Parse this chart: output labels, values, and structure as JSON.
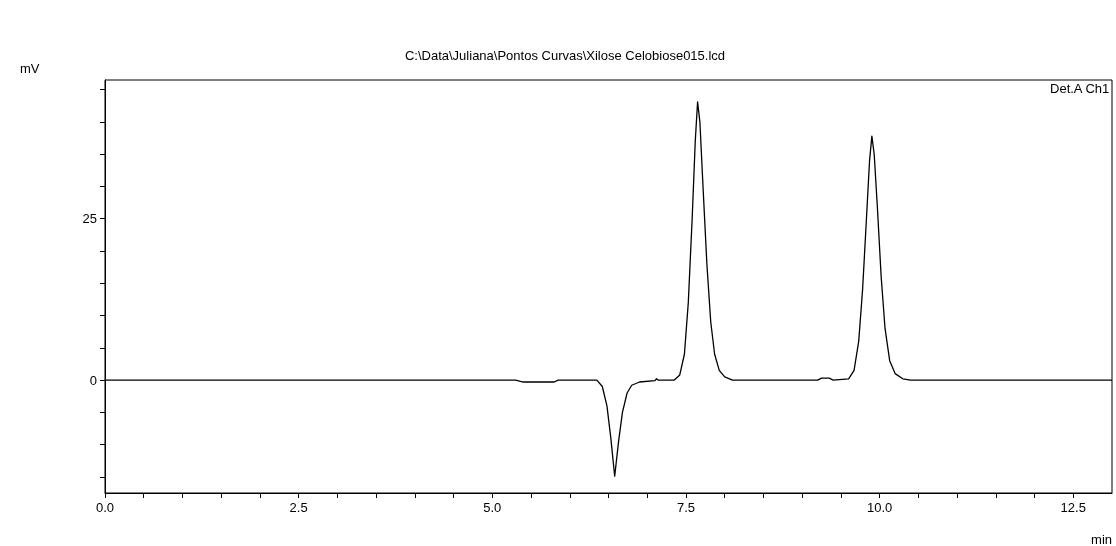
{
  "chart_data": {
    "type": "line",
    "title": "C:\\Data\\Juliana\\Pontos Curvas\\Xilose Celobiose015.lcd",
    "xlabel": "min",
    "ylabel": "mV",
    "annotations": [
      "Det.A Ch1"
    ],
    "grid": false,
    "marker": "none",
    "line_style": "solid",
    "xlim": [
      0,
      13
    ],
    "ylim": [
      -17.5,
      46.5
    ],
    "xticks": [
      {
        "value": 0,
        "label": "0.0"
      },
      {
        "value": 0.5,
        "label": null
      },
      {
        "value": 1,
        "label": null
      },
      {
        "value": 1.5,
        "label": null
      },
      {
        "value": 2,
        "label": null
      },
      {
        "value": 2.5,
        "label": "2.5"
      },
      {
        "value": 3,
        "label": null
      },
      {
        "value": 3.5,
        "label": null
      },
      {
        "value": 4,
        "label": null
      },
      {
        "value": 4.5,
        "label": null
      },
      {
        "value": 5,
        "label": "5.0"
      },
      {
        "value": 5.5,
        "label": null
      },
      {
        "value": 6,
        "label": null
      },
      {
        "value": 6.5,
        "label": null
      },
      {
        "value": 7,
        "label": null
      },
      {
        "value": 7.5,
        "label": "7.5"
      },
      {
        "value": 8,
        "label": null
      },
      {
        "value": 8.5,
        "label": null
      },
      {
        "value": 9,
        "label": null
      },
      {
        "value": 9.5,
        "label": null
      },
      {
        "value": 10,
        "label": "10.0"
      },
      {
        "value": 10.5,
        "label": null
      },
      {
        "value": 11,
        "label": null
      },
      {
        "value": 11.5,
        "label": null
      },
      {
        "value": 12,
        "label": null
      },
      {
        "value": 12.5,
        "label": "12.5"
      }
    ],
    "yticks": [
      {
        "value": -15,
        "label": null
      },
      {
        "value": -10,
        "label": null
      },
      {
        "value": -5,
        "label": null
      },
      0,
      {
        "value": 5,
        "label": null
      },
      {
        "value": 10,
        "label": null
      },
      {
        "value": 15,
        "label": null
      },
      {
        "value": 20,
        "label": null
      },
      25,
      {
        "value": 30,
        "label": null
      },
      {
        "value": 35,
        "label": null
      },
      {
        "value": 40,
        "label": null
      },
      {
        "value": 45,
        "label": null
      }
    ],
    "series": [
      {
        "color": "#000000",
        "x": [
          0,
          5.3,
          5.4,
          5.8,
          5.85,
          6.35,
          6.42,
          6.48,
          6.53,
          6.58,
          6.63,
          6.68,
          6.74,
          6.8,
          6.9,
          7.1,
          7.12,
          7.14,
          7.35,
          7.42,
          7.48,
          7.53,
          7.58,
          7.62,
          7.65,
          7.68,
          7.72,
          7.77,
          7.82,
          7.87,
          7.93,
          8.0,
          8.1,
          9.2,
          9.25,
          9.35,
          9.4,
          9.6,
          9.67,
          9.73,
          9.78,
          9.83,
          9.87,
          9.9,
          9.93,
          9.97,
          10.02,
          10.07,
          10.13,
          10.2,
          10.3,
          10.4,
          13
        ],
        "values": [
          0,
          0,
          -0.3,
          -0.3,
          0,
          0,
          -1,
          -4,
          -9,
          -14.9,
          -9.5,
          -5,
          -2,
          -0.8,
          -0.3,
          -0.1,
          0.2,
          0,
          0,
          0.8,
          4,
          12,
          25,
          37,
          43.1,
          40,
          30,
          18,
          9,
          4,
          1.5,
          0.5,
          0,
          0,
          0.3,
          0.3,
          0,
          0.2,
          1.5,
          6,
          14,
          25,
          34,
          37.8,
          35,
          27,
          16,
          8,
          3,
          1,
          0.2,
          0,
          0
        ]
      }
    ]
  }
}
